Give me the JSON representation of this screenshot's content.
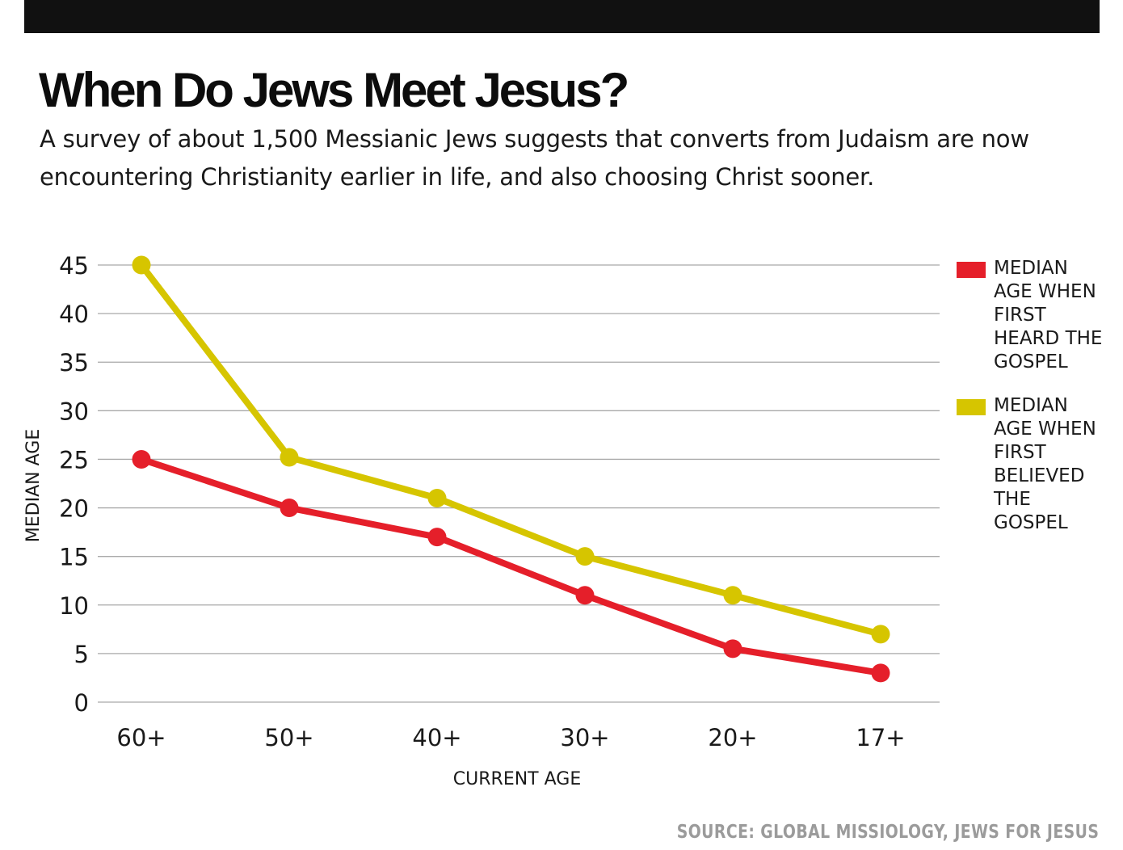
{
  "header": {
    "title": "When Do Jews Meet Jesus?",
    "subtitle": "A survey of about 1,500 Messianic Jews suggests that converts from Judaism are now encountering Christianity earlier in life, and also choosing Christ sooner."
  },
  "source": "SOURCE: GLOBAL MISSIOLOGY, JEWS FOR JESUS",
  "chart_data": {
    "type": "line",
    "xlabel": "CURRENT AGE",
    "ylabel": "MEDIAN AGE",
    "categories": [
      "60+",
      "50+",
      "40+",
      "30+",
      "20+",
      "17+"
    ],
    "ylim": [
      0,
      45
    ],
    "yticks": [
      0,
      5,
      10,
      15,
      20,
      25,
      30,
      35,
      40,
      45
    ],
    "grid": "horizontal",
    "legend_position": "right",
    "series": [
      {
        "name": "MEDIAN AGE WHEN FIRST HEARD THE GOSPEL",
        "color": "#e51f2a",
        "values": [
          25,
          20,
          17,
          11,
          5.5,
          3
        ]
      },
      {
        "name": "MEDIAN AGE WHEN FIRST BELIEVED THE GOSPEL",
        "color": "#d6c500",
        "values": [
          45,
          25.2,
          21,
          15,
          11,
          7
        ]
      }
    ]
  }
}
